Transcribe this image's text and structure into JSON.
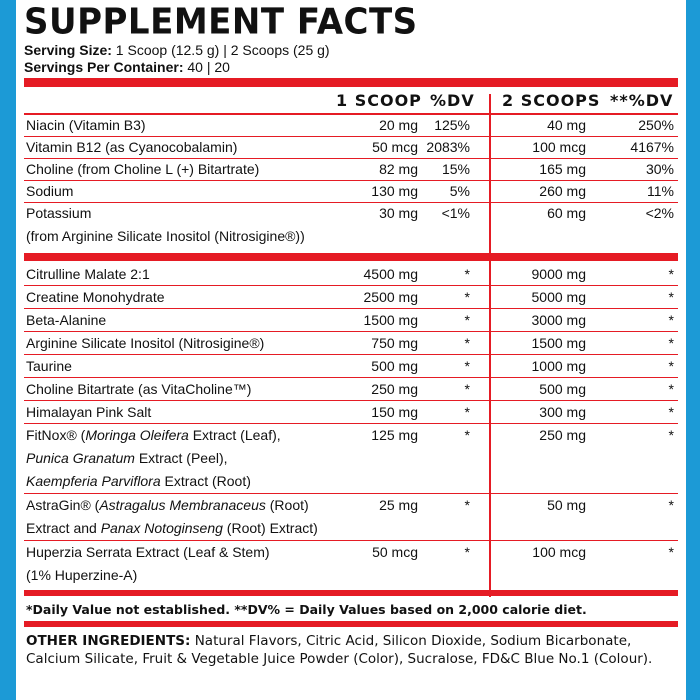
{
  "title": "SUPPLEMENT FACTS",
  "serving_size_label": "Serving Size:",
  "serving_size_value": " 1 Scoop (12.5 g) | 2 Scoops (25 g)",
  "servings_label": "Servings Per Container:",
  "servings_value": " 40 | 20",
  "headers": {
    "one_scoop": "1 SCOOP",
    "dv1": "%DV",
    "two_scoops": "2 SCOOPS",
    "dv2": "**%DV"
  },
  "vitamins": [
    {
      "name": "Niacin (Vitamin B3)",
      "amt1": "20 mg",
      "dv1": "125%",
      "amt2": "40 mg",
      "dv2": "250%"
    },
    {
      "name": "Vitamin B12 (as Cyanocobalamin)",
      "amt1": "50 mcg",
      "dv1": "2083%",
      "amt2": "100 mcg",
      "dv2": "4167%"
    },
    {
      "name": "Choline (from Choline L (+) Bitartrate)",
      "amt1": "82 mg",
      "dv1": "15%",
      "amt2": "165 mg",
      "dv2": "30%"
    },
    {
      "name": "Sodium",
      "amt1": "130 mg",
      "dv1": "5%",
      "amt2": "260 mg",
      "dv2": "11%"
    },
    {
      "name": "Potassium",
      "name2": "(from Arginine Silicate Inositol (Nitrosigine®))",
      "amt1": "30 mg",
      "dv1": "<1%",
      "amt2": "60 mg",
      "dv2": "<2%"
    }
  ],
  "ingredients": [
    {
      "name": "Citrulline Malate 2:1",
      "amt1": "4500 mg",
      "dv1": "*",
      "amt2": "9000 mg",
      "dv2": "*"
    },
    {
      "name": "Creatine Monohydrate",
      "amt1": "2500 mg",
      "dv1": "*",
      "amt2": "5000 mg",
      "dv2": "*"
    },
    {
      "name": "Beta-Alanine",
      "amt1": "1500 mg",
      "dv1": "*",
      "amt2": "3000 mg",
      "dv2": "*"
    },
    {
      "name": "Arginine Silicate Inositol (Nitrosigine®)",
      "amt1": "750 mg",
      "dv1": "*",
      "amt2": "1500 mg",
      "dv2": "*"
    },
    {
      "name": "Taurine",
      "amt1": "500 mg",
      "dv1": "*",
      "amt2": "1000 mg",
      "dv2": "*"
    },
    {
      "name": "Choline Bitartrate (as VitaCholine™)",
      "amt1": "250 mg",
      "dv1": "*",
      "amt2": "500 mg",
      "dv2": "*"
    },
    {
      "name": "Himalayan Pink Salt",
      "amt1": "150 mg",
      "dv1": "*",
      "amt2": "300 mg",
      "dv2": "*"
    }
  ],
  "fitnox": {
    "brand": "FitNox®",
    "l1a": " (",
    "l1b": "Moringa Oleifera",
    "l1c": " Extract (Leaf),",
    "l2a": "Punica Granatum",
    "l2b": " Extract (Peel),",
    "l3a": "Kaempferia Parviflora",
    "l3b": " Extract (Root)",
    "amt1": "125 mg",
    "dv1": "*",
    "amt2": "250 mg",
    "dv2": "*"
  },
  "astragin": {
    "brand": "AstraGin®",
    "l1a": " (",
    "l1b": "Astragalus Membranaceus",
    "l1c": " (Root)",
    "l2a": "Extract and ",
    "l2b": "Panax Notoginseng",
    "l2c": " (Root) Extract)",
    "amt1": "25 mg",
    "dv1": "*",
    "amt2": "50 mg",
    "dv2": "*"
  },
  "huperzia": {
    "name": "Huperzia Serrata Extract (Leaf & Stem)",
    "name2": "(1% Huperzine-A)",
    "amt1": "50 mcg",
    "dv1": "*",
    "amt2": "100 mcg",
    "dv2": "*"
  },
  "footnote": "*Daily Value not established. **DV% = Daily Values based on 2,000 calorie diet.",
  "other_label": "OTHER INGREDIENTS:",
  "other_text": " Natural Flavors, Citric Acid, Silicon Dioxide, Sodium Bicarbonate, Calcium Silicate, Fruit & Vegetable Juice Powder (Color), Sucralose, FD&C Blue No.1 (Colour).",
  "colors": {
    "accent": "#e51b24",
    "background": "#1c9ad6"
  }
}
